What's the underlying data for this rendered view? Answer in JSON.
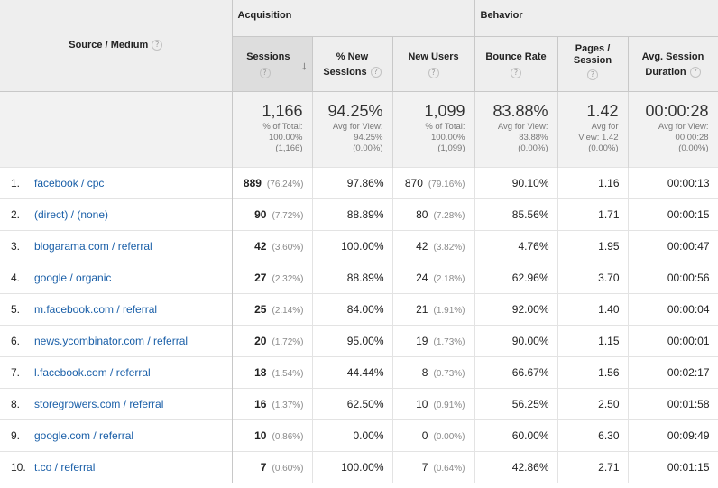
{
  "header": {
    "source_medium": "Source / Medium",
    "groups": {
      "acquisition": "Acquisition",
      "behavior": "Behavior"
    },
    "help_icon": "question-circle-icon",
    "sort_icon": "arrow-down-icon",
    "columns": {
      "sessions": "Sessions",
      "pct_new_sessions_1": "% New",
      "pct_new_sessions_2": "Sessions",
      "new_users": "New Users",
      "bounce_rate": "Bounce Rate",
      "pages_session_1": "Pages /",
      "pages_session_2": "Session",
      "avg_session_1": "Avg. Session",
      "avg_session_2": "Duration"
    }
  },
  "totals": {
    "sessions": {
      "value": "1,166",
      "l1": "% of Total:",
      "l2": "100.00%",
      "l3": "(1,166)"
    },
    "pct_new_sessions": {
      "value": "94.25%",
      "l1": "Avg for View:",
      "l2": "94.25%",
      "l3": "(0.00%)"
    },
    "new_users": {
      "value": "1,099",
      "l1": "% of Total:",
      "l2": "100.00%",
      "l3": "(1,099)"
    },
    "bounce_rate": {
      "value": "83.88%",
      "l1": "Avg for View:",
      "l2": "83.88%",
      "l3": "(0.00%)"
    },
    "pages_session": {
      "value": "1.42",
      "l1": "Avg for",
      "l2": "View: 1.42",
      "l3": "(0.00%)"
    },
    "avg_duration": {
      "value": "00:00:28",
      "l1": "Avg for View:",
      "l2": "00:00:28",
      "l3": "(0.00%)"
    }
  },
  "rows": [
    {
      "idx": "1.",
      "source": "facebook / cpc",
      "sessions": "889",
      "sessions_pct": "(76.24%)",
      "pct_new": "97.86%",
      "new_users": "870",
      "new_users_pct": "(79.16%)",
      "bounce": "90.10%",
      "pages": "1.16",
      "duration": "00:00:13"
    },
    {
      "idx": "2.",
      "source": "(direct) / (none)",
      "sessions": "90",
      "sessions_pct": "(7.72%)",
      "pct_new": "88.89%",
      "new_users": "80",
      "new_users_pct": "(7.28%)",
      "bounce": "85.56%",
      "pages": "1.71",
      "duration": "00:00:15"
    },
    {
      "idx": "3.",
      "source": "blogarama.com / referral",
      "sessions": "42",
      "sessions_pct": "(3.60%)",
      "pct_new": "100.00%",
      "new_users": "42",
      "new_users_pct": "(3.82%)",
      "bounce": "4.76%",
      "pages": "1.95",
      "duration": "00:00:47"
    },
    {
      "idx": "4.",
      "source": "google / organic",
      "sessions": "27",
      "sessions_pct": "(2.32%)",
      "pct_new": "88.89%",
      "new_users": "24",
      "new_users_pct": "(2.18%)",
      "bounce": "62.96%",
      "pages": "3.70",
      "duration": "00:00:56"
    },
    {
      "idx": "5.",
      "source": "m.facebook.com / referral",
      "sessions": "25",
      "sessions_pct": "(2.14%)",
      "pct_new": "84.00%",
      "new_users": "21",
      "new_users_pct": "(1.91%)",
      "bounce": "92.00%",
      "pages": "1.40",
      "duration": "00:00:04"
    },
    {
      "idx": "6.",
      "source": "news.ycombinator.com / referral",
      "sessions": "20",
      "sessions_pct": "(1.72%)",
      "pct_new": "95.00%",
      "new_users": "19",
      "new_users_pct": "(1.73%)",
      "bounce": "90.00%",
      "pages": "1.15",
      "duration": "00:00:01"
    },
    {
      "idx": "7.",
      "source": "l.facebook.com / referral",
      "sessions": "18",
      "sessions_pct": "(1.54%)",
      "pct_new": "44.44%",
      "new_users": "8",
      "new_users_pct": "(0.73%)",
      "bounce": "66.67%",
      "pages": "1.56",
      "duration": "00:02:17"
    },
    {
      "idx": "8.",
      "source": "storegrowers.com / referral",
      "sessions": "16",
      "sessions_pct": "(1.37%)",
      "pct_new": "62.50%",
      "new_users": "10",
      "new_users_pct": "(0.91%)",
      "bounce": "56.25%",
      "pages": "2.50",
      "duration": "00:01:58"
    },
    {
      "idx": "9.",
      "source": "google.com / referral",
      "sessions": "10",
      "sessions_pct": "(0.86%)",
      "pct_new": "0.00%",
      "new_users": "0",
      "new_users_pct": "(0.00%)",
      "bounce": "60.00%",
      "pages": "6.30",
      "duration": "00:09:49"
    },
    {
      "idx": "10.",
      "source": "t.co / referral",
      "sessions": "7",
      "sessions_pct": "(0.60%)",
      "pct_new": "100.00%",
      "new_users": "7",
      "new_users_pct": "(0.64%)",
      "bounce": "42.86%",
      "pages": "2.71",
      "duration": "00:01:15"
    }
  ],
  "colors": {
    "link": "#1a5fa8",
    "header_bg": "#eeeeee",
    "sorted_header_bg": "#dddddd",
    "totals_bg": "#f2f2f2"
  }
}
